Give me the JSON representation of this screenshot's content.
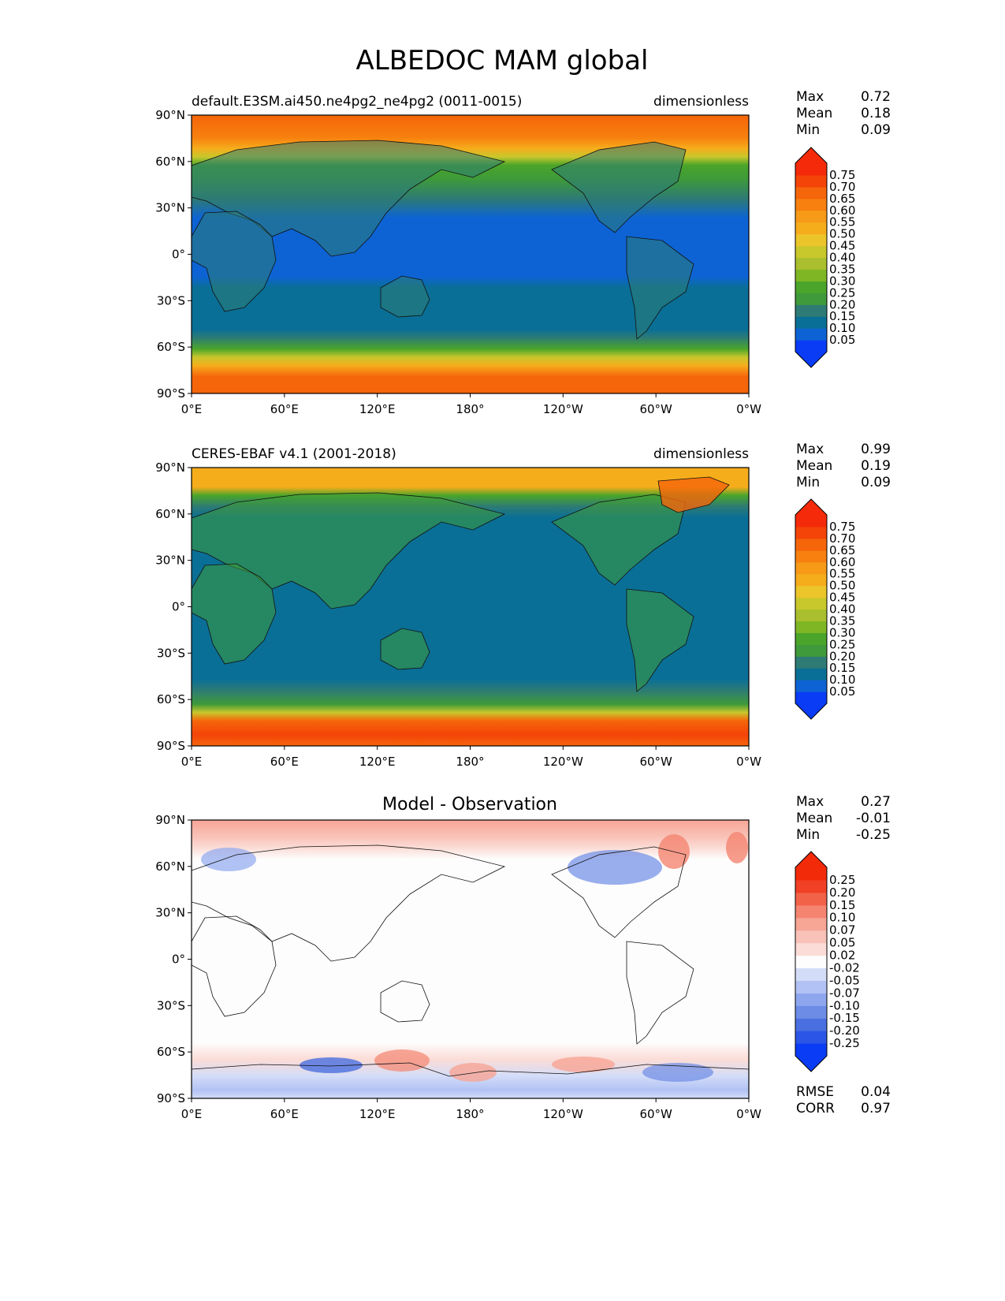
{
  "figure_title": "ALBEDOC MAM global",
  "lon_ticks": [
    "0°E",
    "60°E",
    "120°E",
    "180°",
    "120°W",
    "60°W",
    "0°W"
  ],
  "lat_ticks": [
    "90°N",
    "60°N",
    "30°N",
    "0°",
    "30°S",
    "60°S",
    "90°S"
  ],
  "stat_labels": {
    "max": "Max",
    "mean": "Mean",
    "min": "Min",
    "rmse": "RMSE",
    "corr": "CORR"
  },
  "panels": [
    {
      "id": "model",
      "left_title": "default.E3SM.ai450.ne4pg2_ne4pg2 (0011-0015)",
      "center_title": "",
      "right_title": "dimensionless",
      "stats": {
        "max": "0.72",
        "mean": "0.18",
        "min": "0.09"
      },
      "colorbar": {
        "labels": [
          "0.75",
          "0.70",
          "0.65",
          "0.60",
          "0.55",
          "0.50",
          "0.45",
          "0.40",
          "0.35",
          "0.30",
          "0.25",
          "0.20",
          "0.15",
          "0.10",
          "0.05"
        ],
        "colors": [
          "#0a3cf5",
          "#0d63d4",
          "#0a6f96",
          "#2d7b74",
          "#3e9a3a",
          "#4aa52a",
          "#7fb624",
          "#a9bf2d",
          "#c8c72c",
          "#ecc52a",
          "#f6ad1c",
          "#f79a17",
          "#f7800f",
          "#f5650a",
          "#f44408",
          "#f52a0a"
        ],
        "under_color": "#0a3cf5",
        "over_color": "#f52a0a"
      }
    },
    {
      "id": "obs",
      "left_title": "CERES-EBAF v4.1 (2001-2018)",
      "center_title": "",
      "right_title": "dimensionless",
      "stats": {
        "max": "0.99",
        "mean": "0.19",
        "min": "0.09"
      },
      "colorbar": {
        "labels": [
          "0.75",
          "0.70",
          "0.65",
          "0.60",
          "0.55",
          "0.50",
          "0.45",
          "0.40",
          "0.35",
          "0.30",
          "0.25",
          "0.20",
          "0.15",
          "0.10",
          "0.05"
        ],
        "colors": [
          "#0a3cf5",
          "#0d63d4",
          "#0a6f96",
          "#2d7b74",
          "#3e9a3a",
          "#4aa52a",
          "#7fb624",
          "#a9bf2d",
          "#c8c72c",
          "#ecc52a",
          "#f6ad1c",
          "#f79a17",
          "#f7800f",
          "#f5650a",
          "#f44408",
          "#f52a0a"
        ],
        "under_color": "#0a3cf5",
        "over_color": "#f52a0a"
      }
    },
    {
      "id": "diff",
      "left_title": "",
      "center_title": "Model - Observation",
      "right_title": "",
      "stats": {
        "max": "0.27",
        "mean": "-0.01",
        "min": "-0.25"
      },
      "extra_stats": {
        "rmse": "0.04",
        "corr": "0.97"
      },
      "colorbar": {
        "labels": [
          "0.25",
          "0.20",
          "0.15",
          "0.10",
          "0.07",
          "0.05",
          "0.02",
          "-0.02",
          "-0.05",
          "-0.07",
          "-0.10",
          "-0.15",
          "-0.20",
          "-0.25"
        ],
        "colors": [
          "#0a3cf5",
          "#2b55e6",
          "#4a6fe0",
          "#6d8ce6",
          "#8ea6ee",
          "#b2c2f4",
          "#d3ddf8",
          "#fdfdfd",
          "#fbdcd6",
          "#f9c2b8",
          "#f7a595",
          "#f48470",
          "#f26249",
          "#f04026",
          "#f22a0a"
        ],
        "under_color": "#0a3cf5",
        "over_color": "#f22a0a"
      }
    }
  ]
}
